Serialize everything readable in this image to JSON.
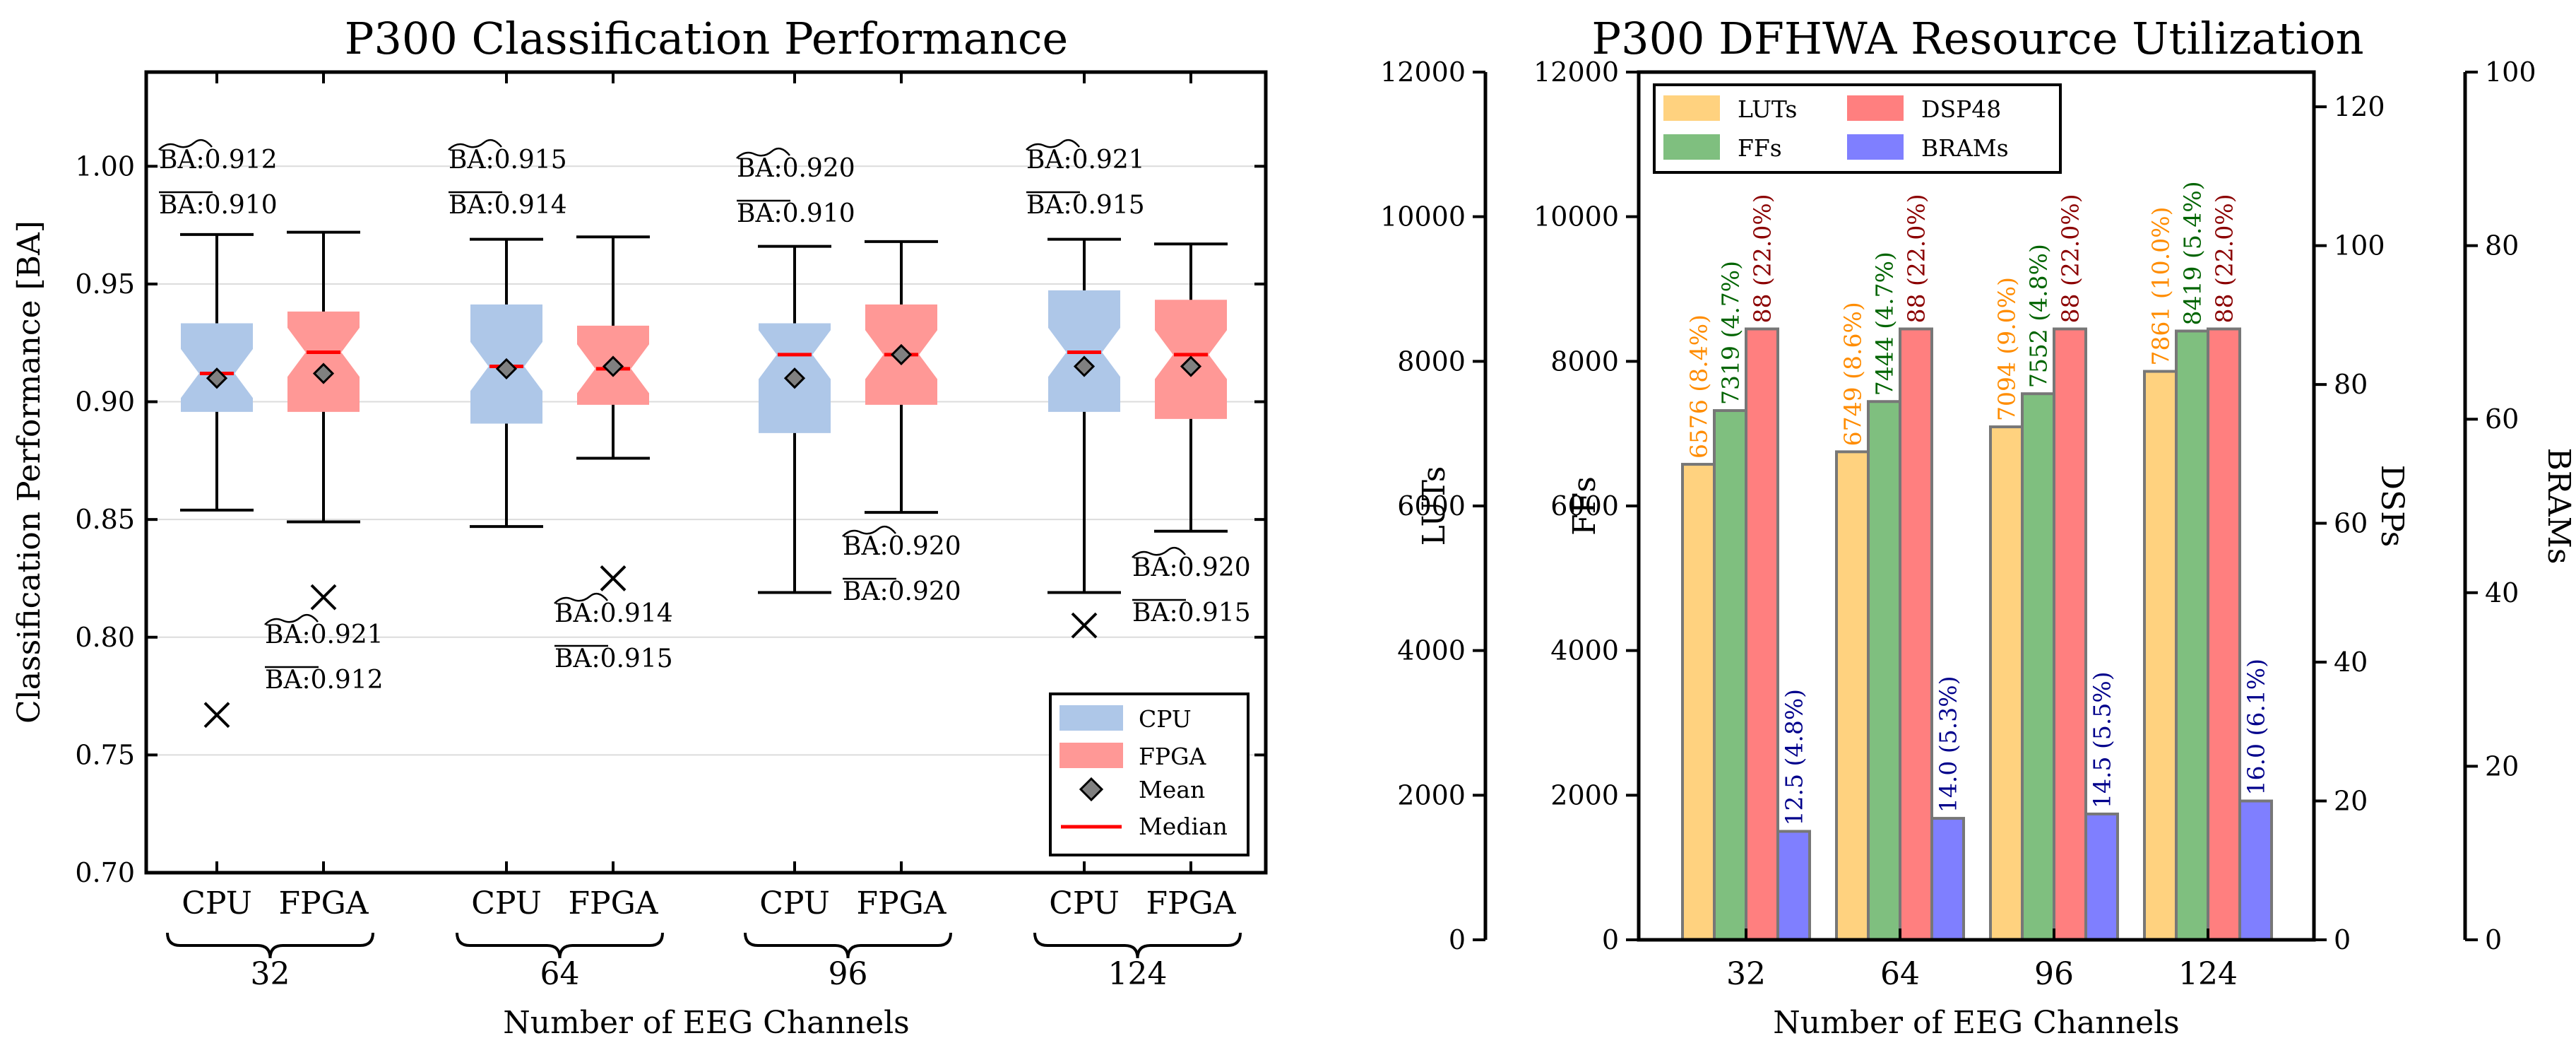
{
  "colors": {
    "cpu": "#aec7e8",
    "fpga": "#ff9896",
    "median": "#ff0000",
    "mean": "#808080",
    "luts": "#ffd27f",
    "ffs": "#7fbf7f",
    "dsp": "#ff7f7f",
    "bram": "#7f7fff",
    "luts_label": "#ff8c00",
    "ffs_label": "#006400",
    "dsp_label": "#8b0000",
    "bram_label": "#00008b"
  },
  "chart_data": [
    {
      "type": "box",
      "title": "P300 Classification Performance",
      "xlabel": "Number of EEG Channels",
      "ylabel": "Classification Performance [BA]",
      "ylim": [
        0.7,
        1.04
      ],
      "yticks": [
        "0.70",
        "0.75",
        "0.80",
        "0.85",
        "0.90",
        "0.95",
        "1.00"
      ],
      "grid": true,
      "legend_position": "bottom-right",
      "legend": [
        "CPU",
        "FPGA",
        "Mean",
        "Median"
      ],
      "groups": [
        {
          "channels": "32",
          "boxes": [
            {
              "label": "CPU",
              "q1": 0.896,
              "median": 0.912,
              "q3": 0.933,
              "mean": 0.91,
              "whislo": 0.854,
              "whishi": 0.971,
              "fliers": [
                0.767
              ],
              "ann_median": "BA:0.912",
              "ann_mean": "BA:0.910"
            },
            {
              "label": "FPGA",
              "q1": 0.896,
              "median": 0.921,
              "q3": 0.938,
              "mean": 0.912,
              "whislo": 0.849,
              "whishi": 0.972,
              "fliers": [
                0.817
              ],
              "ann_median": "BA:0.921",
              "ann_mean": "BA:0.912"
            }
          ]
        },
        {
          "channels": "64",
          "boxes": [
            {
              "label": "CPU",
              "q1": 0.891,
              "median": 0.915,
              "q3": 0.941,
              "mean": 0.914,
              "whislo": 0.847,
              "whishi": 0.969,
              "fliers": [],
              "ann_median": "BA:0.915",
              "ann_mean": "BA:0.914"
            },
            {
              "label": "FPGA",
              "q1": 0.899,
              "median": 0.914,
              "q3": 0.932,
              "mean": 0.915,
              "whislo": 0.876,
              "whishi": 0.97,
              "fliers": [
                0.825
              ],
              "ann_median": "BA:0.914",
              "ann_mean": "BA:0.915"
            }
          ]
        },
        {
          "channels": "96",
          "boxes": [
            {
              "label": "CPU",
              "q1": 0.887,
              "median": 0.92,
              "q3": 0.933,
              "mean": 0.91,
              "whislo": 0.819,
              "whishi": 0.966,
              "fliers": [],
              "ann_median": "BA:0.920",
              "ann_mean": "BA:0.910"
            },
            {
              "label": "FPGA",
              "q1": 0.899,
              "median": 0.92,
              "q3": 0.941,
              "mean": 0.92,
              "whislo": 0.853,
              "whishi": 0.968,
              "fliers": [],
              "ann_median": "BA:0.920",
              "ann_mean": "BA:0.920"
            }
          ]
        },
        {
          "channels": "124",
          "boxes": [
            {
              "label": "CPU",
              "q1": 0.896,
              "median": 0.921,
              "q3": 0.947,
              "mean": 0.915,
              "whislo": 0.819,
              "whishi": 0.969,
              "fliers": [
                0.805
              ],
              "ann_median": "BA:0.921",
              "ann_mean": "BA:0.915"
            },
            {
              "label": "FPGA",
              "q1": 0.893,
              "median": 0.92,
              "q3": 0.943,
              "mean": 0.915,
              "whislo": 0.845,
              "whishi": 0.967,
              "fliers": [],
              "ann_median": "BA:0.920",
              "ann_mean": "BA:0.915"
            }
          ]
        }
      ]
    },
    {
      "type": "bar",
      "title": "P300 DFHWA Resource Utilization",
      "xlabel": "Number of EEG Channels",
      "categories": [
        "32",
        "64",
        "96",
        "124"
      ],
      "legend_position": "top-left",
      "legend": [
        "LUTs",
        "FFs",
        "DSP48",
        "BRAMs"
      ],
      "axes": [
        {
          "name": "LUTs",
          "range": [
            0,
            12000
          ],
          "ticks": [
            "0",
            "2000",
            "4000",
            "6000",
            "8000",
            "10000",
            "12000"
          ]
        },
        {
          "name": "FFs",
          "range": [
            0,
            12000
          ],
          "ticks": [
            "0",
            "2000",
            "4000",
            "6000",
            "8000",
            "10000",
            "12000"
          ]
        },
        {
          "name": "DSPs",
          "range": [
            0,
            125
          ],
          "ticks": [
            "0",
            "20",
            "40",
            "60",
            "80",
            "100",
            "120"
          ]
        },
        {
          "name": "BRAMs",
          "range": [
            0,
            100
          ],
          "ticks": [
            "0",
            "20",
            "40",
            "60",
            "80",
            "100"
          ]
        }
      ],
      "series": [
        {
          "name": "LUTs",
          "axis": "LUTs",
          "values": [
            6576,
            6749,
            7094,
            7861
          ],
          "labels": [
            "6576 (8.4%)",
            "6749 (8.6%)",
            "7094 (9.0%)",
            "7861 (10.0%)"
          ]
        },
        {
          "name": "FFs",
          "axis": "FFs",
          "values": [
            7319,
            7444,
            7552,
            8419
          ],
          "labels": [
            "7319 (4.7%)",
            "7444 (4.7%)",
            "7552 (4.8%)",
            "8419 (5.4%)"
          ]
        },
        {
          "name": "DSP48",
          "axis": "DSPs",
          "values": [
            88,
            88,
            88,
            88
          ],
          "labels": [
            "88 (22.0%)",
            "88 (22.0%)",
            "88 (22.0%)",
            "88 (22.0%)"
          ]
        },
        {
          "name": "BRAMs",
          "axis": "BRAMs",
          "values": [
            12.5,
            14.0,
            14.5,
            16.0
          ],
          "labels": [
            "12.5 (4.8%)",
            "14.0 (5.3%)",
            "14.5 (5.5%)",
            "16.0 (6.1%)"
          ]
        }
      ]
    }
  ]
}
